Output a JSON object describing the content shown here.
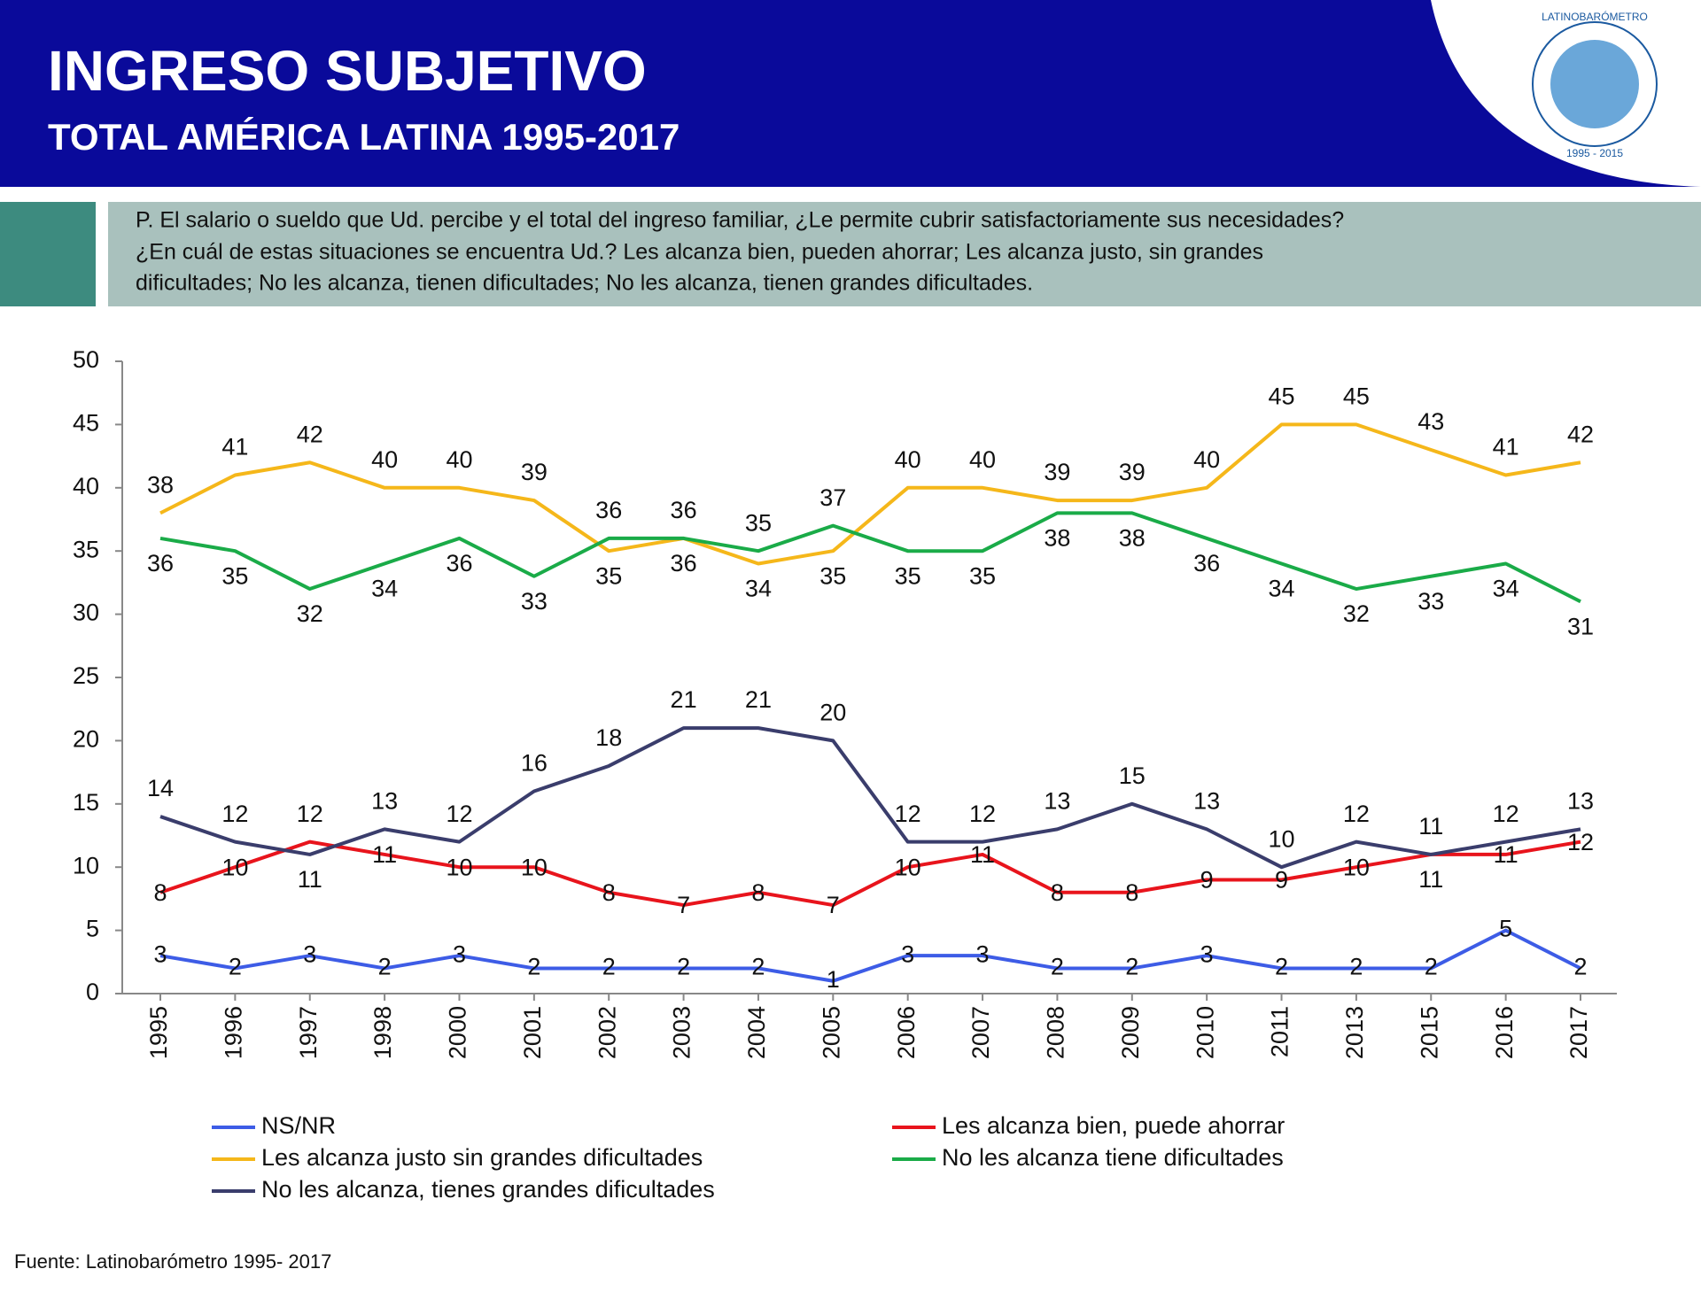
{
  "header": {
    "title": "INGRESO SUBJETIVO",
    "subtitle": "TOTAL AMÉRICA LATINA 1995-2017",
    "logo_text": "LATINOBARÓMETRO",
    "logo_years": "1995 - 2015"
  },
  "question": [
    "P. El salario o sueldo que Ud. percibe y el total del ingreso familiar, ¿Le permite cubrir satisfactoriamente sus necesidades?",
    "¿En cuál de estas situaciones se encuentra Ud.?  Les alcanza bien, pueden ahorrar; Les alcanza justo, sin grandes",
    "dificultades; No les alcanza, tienen dificultades; No les alcanza, tienen grandes dificultades."
  ],
  "chart_data": {
    "type": "line",
    "categories": [
      "1995",
      "1996",
      "1997",
      "1998",
      "2000",
      "2001",
      "2002",
      "2003",
      "2004",
      "2005",
      "2006",
      "2007",
      "2008",
      "2009",
      "2010",
      "2011",
      "2013",
      "2015",
      "2016",
      "2017"
    ],
    "series": [
      {
        "name": "NS/NR",
        "color": "#3d5ce6",
        "values": [
          3,
          2,
          3,
          2,
          3,
          2,
          2,
          2,
          2,
          1,
          3,
          3,
          2,
          2,
          3,
          2,
          2,
          2,
          5,
          2
        ]
      },
      {
        "name": "Les alcanza bien, puede ahorrar",
        "color": "#e8141c",
        "values": [
          8,
          10,
          12,
          11,
          10,
          10,
          8,
          7,
          8,
          7,
          10,
          11,
          8,
          8,
          9,
          9,
          10,
          11,
          11,
          12
        ]
      },
      {
        "name": "Les alcanza justo sin grandes dificultades",
        "color": "#f5b71a",
        "values": [
          38,
          41,
          42,
          40,
          40,
          39,
          35,
          36,
          34,
          35,
          40,
          40,
          39,
          39,
          40,
          45,
          45,
          43,
          41,
          42
        ]
      },
      {
        "name": "No les alcanza tiene dificultades",
        "color": "#1aab48",
        "values": [
          36,
          35,
          32,
          34,
          36,
          33,
          36,
          36,
          35,
          37,
          35,
          35,
          38,
          38,
          36,
          34,
          32,
          33,
          34,
          31
        ]
      },
      {
        "name": "No les alcanza, tienes grandes dificultades",
        "color": "#3a3d6c",
        "values": [
          14,
          12,
          11,
          13,
          12,
          16,
          18,
          21,
          21,
          20,
          12,
          12,
          13,
          15,
          13,
          10,
          12,
          11,
          12,
          13
        ]
      }
    ],
    "ylim": [
      0,
      50
    ],
    "yticks": [
      0,
      5,
      10,
      15,
      20,
      25,
      30,
      35,
      40,
      45,
      50
    ],
    "grid": false
  },
  "source": "Fuente: Latinobarómetro 1995- 2017"
}
